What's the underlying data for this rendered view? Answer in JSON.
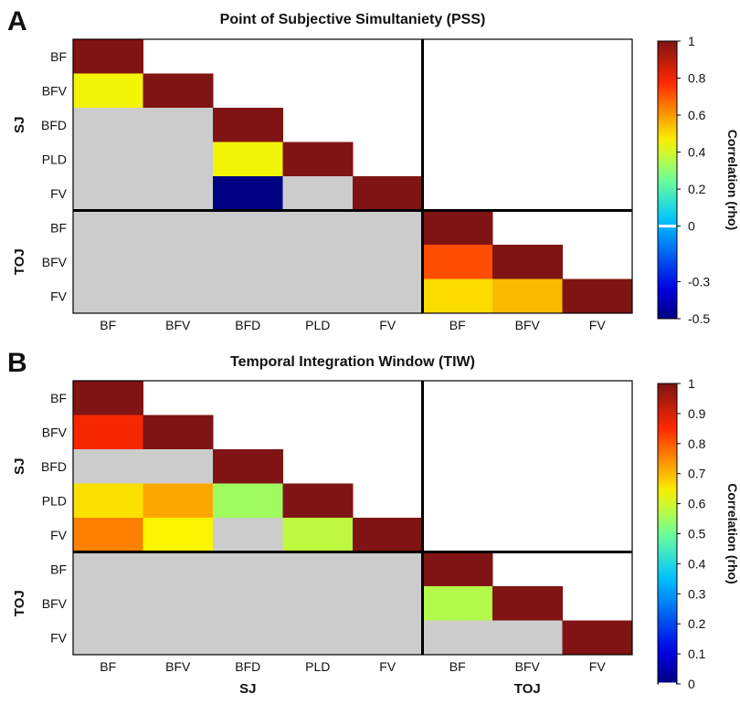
{
  "chart_data": [
    {
      "type": "heatmap",
      "panel_label": "A",
      "title": "Point of Subjective Simultaniety (PSS)",
      "row_labels": [
        "BF",
        "BFV",
        "BFD",
        "PLD",
        "FV",
        "BF",
        "BFV",
        "FV"
      ],
      "col_labels": [
        "BF",
        "BFV",
        "BFD",
        "PLD",
        "FV",
        "BF",
        "BFV",
        "FV"
      ],
      "row_groups": [
        {
          "label": "SJ",
          "count": 5
        },
        {
          "label": "TOJ",
          "count": 3
        }
      ],
      "col_groups": [],
      "values": [
        [
          1,
          null,
          null,
          null,
          null,
          null,
          null,
          null
        ],
        [
          0.45,
          1,
          null,
          null,
          null,
          null,
          null,
          null
        ],
        [
          "ns",
          "ns",
          1,
          null,
          null,
          null,
          null,
          null
        ],
        [
          "ns",
          "ns",
          0.45,
          1,
          null,
          null,
          null,
          null
        ],
        [
          "ns",
          "ns",
          -0.5,
          "ns",
          1,
          null,
          null,
          null
        ],
        [
          "ns",
          "ns",
          "ns",
          "ns",
          "ns",
          1,
          null,
          null
        ],
        [
          "ns",
          "ns",
          "ns",
          "ns",
          "ns",
          0.72,
          1,
          null
        ],
        [
          "ns",
          "ns",
          "ns",
          "ns",
          "ns",
          0.5,
          0.55,
          1
        ]
      ],
      "colorbar": {
        "label": "Correlation (rho)",
        "ticks": [
          "1",
          "0.8",
          "0.6",
          "0.4",
          "0.2",
          "0",
          "-0.3",
          "-0.5"
        ],
        "range": [
          -0.5,
          1
        ],
        "zero_color": "#ffffff"
      },
      "nonsignificant_color": "#cccccc"
    },
    {
      "type": "heatmap",
      "panel_label": "B",
      "title": "Temporal Integration Window (TIW)",
      "row_labels": [
        "BF",
        "BFV",
        "BFD",
        "PLD",
        "FV",
        "BF",
        "BFV",
        "FV"
      ],
      "col_labels": [
        "BF",
        "BFV",
        "BFD",
        "PLD",
        "FV",
        "BF",
        "BFV",
        "FV"
      ],
      "row_groups": [
        {
          "label": "SJ",
          "count": 5
        },
        {
          "label": "TOJ",
          "count": 3
        }
      ],
      "col_groups": [
        {
          "label": "SJ",
          "count": 5
        },
        {
          "label": "TOJ",
          "count": 3
        }
      ],
      "values": [
        [
          1,
          null,
          null,
          null,
          null,
          null,
          null,
          null
        ],
        [
          0.86,
          1,
          null,
          null,
          null,
          null,
          null,
          null
        ],
        [
          "ns",
          "ns",
          1,
          null,
          null,
          null,
          null,
          null
        ],
        [
          0.66,
          0.72,
          0.55,
          1,
          null,
          null,
          null,
          null
        ],
        [
          0.76,
          0.64,
          "ns",
          0.58,
          1,
          null,
          null,
          null
        ],
        [
          "ns",
          "ns",
          "ns",
          "ns",
          "ns",
          1,
          null,
          null
        ],
        [
          "ns",
          "ns",
          "ns",
          "ns",
          "ns",
          0.57,
          1,
          null
        ],
        [
          "ns",
          "ns",
          "ns",
          "ns",
          "ns",
          "ns",
          "ns",
          1
        ]
      ],
      "colorbar": {
        "label": "Correlation (rho)",
        "ticks": [
          "1",
          "0.9",
          "0.8",
          "0.7",
          "0.6",
          "0.5",
          "0.4",
          "0.3",
          "0.2",
          "0.1",
          "0"
        ],
        "range": [
          0,
          1
        ],
        "zero_color": "#ffffff"
      },
      "nonsignificant_color": "#cccccc"
    }
  ]
}
